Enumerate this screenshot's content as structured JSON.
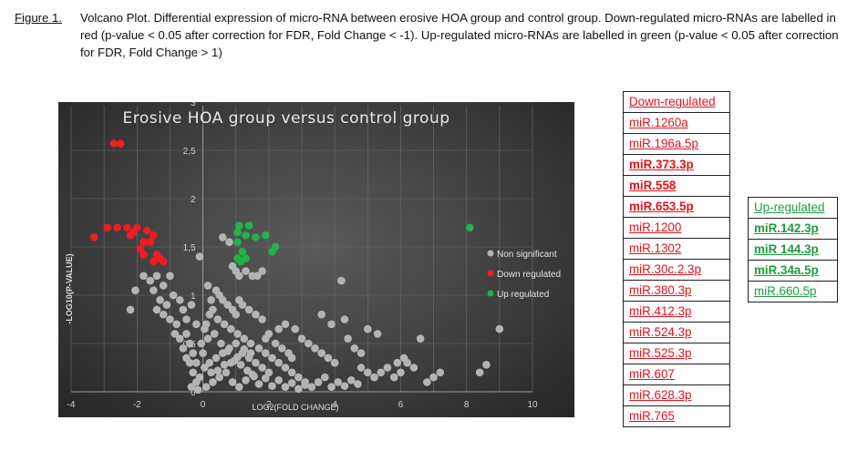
{
  "caption": {
    "figure_label": "Figure 1.",
    "text": "Volcano Plot. Differential expression of micro-RNA between erosive HOA group and control group. Down-regulated micro-RNAs are labelled in red (p-value < 0.05 after correction for FDR, Fold Change < -1). Up-regulated micro-RNAs are labelled in green (p-value < 0.05 after correction for FDR, Fold Change > 1)"
  },
  "down_table": {
    "header": "Down-regulated",
    "items": [
      {
        "label": "miR.1260a",
        "bold": false
      },
      {
        "label": "miR.196a.5p",
        "bold": false
      },
      {
        "label": "miR.373.3p",
        "bold": true
      },
      {
        "label": "miR.558",
        "bold": true
      },
      {
        "label": "miR.653.5p",
        "bold": true
      },
      {
        "label": "miR.1200",
        "bold": false
      },
      {
        "label": "miR.1302",
        "bold": false
      },
      {
        "label": "miR.30c.2.3p",
        "bold": false
      },
      {
        "label": "miR.380.3p",
        "bold": false
      },
      {
        "label": "miR.412.3p",
        "bold": false
      },
      {
        "label": "miR.524.3p",
        "bold": false
      },
      {
        "label": "miR.525.3p",
        "bold": false
      },
      {
        "label": "miR.607",
        "bold": false
      },
      {
        "label": "miR.628.3p",
        "bold": false
      },
      {
        "label": "miR.765",
        "bold": false
      }
    ]
  },
  "up_table": {
    "header": "Up-regulated",
    "items": [
      {
        "label": "miR.142.3p",
        "bold": true
      },
      {
        "label": "miR 144.3p",
        "bold": true
      },
      {
        "label": "miR.34a.5p",
        "bold": true
      },
      {
        "label": "miR.660.5p",
        "bold": false
      }
    ]
  },
  "chart_data": {
    "type": "scatter",
    "title": "Erosive HOA group versus control group",
    "xlabel": "LOG2(FOLD CHANGE)",
    "ylabel": "-LOG10(P-VALUE)",
    "xlim": [
      -4,
      10
    ],
    "ylim": [
      0,
      3
    ],
    "xticks": [
      -4,
      -2,
      0,
      2,
      4,
      6,
      8,
      10
    ],
    "yticks": [
      0.5,
      1,
      1.5,
      2,
      2.5,
      3
    ],
    "grid": true,
    "legend_position": "right",
    "colors": {
      "non_significant": "#b4b4b4",
      "down": "#ee1c24",
      "up": "#22b14c"
    },
    "series": [
      {
        "name": "Non significant",
        "color": "#b4b4b4",
        "points": [
          [
            -2.2,
            0.85
          ],
          [
            -2.05,
            1.05
          ],
          [
            -1.8,
            1.2
          ],
          [
            -1.6,
            1.15
          ],
          [
            -1.4,
            1.2
          ],
          [
            -1.2,
            1.1
          ],
          [
            -1.0,
            1.2
          ],
          [
            -1.5,
            1.05
          ],
          [
            -1.3,
            0.95
          ],
          [
            -1.1,
            0.9
          ],
          [
            -0.9,
            1.0
          ],
          [
            -0.7,
            0.95
          ],
          [
            -1.4,
            0.85
          ],
          [
            -1.2,
            0.8
          ],
          [
            -1.0,
            0.75
          ],
          [
            -0.8,
            0.7
          ],
          [
            -0.6,
            0.85
          ],
          [
            -0.5,
            0.75
          ],
          [
            -0.85,
            0.6
          ],
          [
            -0.7,
            0.55
          ],
          [
            -0.5,
            0.6
          ],
          [
            -0.4,
            0.5
          ],
          [
            -0.6,
            0.45
          ],
          [
            -0.3,
            0.4
          ],
          [
            -0.5,
            0.35
          ],
          [
            -0.4,
            0.3
          ],
          [
            -0.2,
            0.3
          ],
          [
            -0.3,
            0.2
          ],
          [
            -0.1,
            0.15
          ],
          [
            -0.2,
            0.1
          ],
          [
            -0.35,
            0.05
          ],
          [
            -0.15,
            0.02
          ],
          [
            -0.1,
            1.4
          ],
          [
            0.6,
            1.6
          ],
          [
            0.8,
            1.55
          ],
          [
            0.9,
            1.3
          ],
          [
            1.0,
            1.25
          ],
          [
            1.1,
            1.2
          ],
          [
            1.3,
            1.25
          ],
          [
            1.5,
            1.2
          ],
          [
            1.8,
            1.25
          ],
          [
            1.65,
            1.2
          ],
          [
            4.2,
            1.15
          ],
          [
            0.4,
            1.05
          ],
          [
            0.5,
            1.0
          ],
          [
            0.6,
            0.95
          ],
          [
            0.75,
            0.9
          ],
          [
            0.9,
            0.85
          ],
          [
            1.0,
            0.8
          ],
          [
            1.1,
            0.95
          ],
          [
            1.2,
            0.9
          ],
          [
            1.4,
            0.85
          ],
          [
            1.6,
            0.8
          ],
          [
            1.8,
            0.75
          ],
          [
            0.3,
            0.85
          ],
          [
            0.2,
            0.8
          ],
          [
            0.45,
            0.75
          ],
          [
            0.65,
            0.7
          ],
          [
            0.85,
            0.65
          ],
          [
            1.05,
            0.6
          ],
          [
            1.25,
            0.55
          ],
          [
            1.45,
            0.5
          ],
          [
            1.7,
            0.45
          ],
          [
            1.9,
            0.4
          ],
          [
            2.1,
            0.35
          ],
          [
            2.3,
            0.3
          ],
          [
            2.5,
            0.25
          ],
          [
            2.7,
            0.2
          ],
          [
            2.9,
            0.15
          ],
          [
            3.1,
            0.1
          ],
          [
            3.3,
            0.05
          ],
          [
            2.8,
            0.65
          ],
          [
            3.0,
            0.55
          ],
          [
            3.2,
            0.5
          ],
          [
            3.4,
            0.45
          ],
          [
            3.6,
            0.4
          ],
          [
            3.8,
            0.35
          ],
          [
            4.0,
            0.3
          ],
          [
            3.6,
            0.8
          ],
          [
            3.9,
            0.7
          ],
          [
            4.4,
            0.55
          ],
          [
            4.6,
            0.45
          ],
          [
            4.8,
            0.4
          ],
          [
            4.3,
            0.75
          ],
          [
            5.0,
            0.65
          ],
          [
            5.3,
            0.6
          ],
          [
            4.8,
            0.25
          ],
          [
            5.0,
            0.2
          ],
          [
            5.2,
            0.15
          ],
          [
            5.4,
            0.2
          ],
          [
            5.6,
            0.25
          ],
          [
            5.8,
            0.15
          ],
          [
            6.0,
            0.2
          ],
          [
            6.2,
            0.3
          ],
          [
            6.4,
            0.25
          ],
          [
            6.6,
            0.55
          ],
          [
            6.8,
            0.1
          ],
          [
            7.0,
            0.15
          ],
          [
            7.2,
            0.2
          ],
          [
            5.9,
            0.3
          ],
          [
            6.1,
            0.35
          ],
          [
            8.4,
            0.2
          ],
          [
            8.6,
            0.28
          ],
          [
            9.0,
            0.65
          ],
          [
            0.1,
            0.05
          ],
          [
            0.3,
            0.1
          ],
          [
            0.5,
            0.15
          ],
          [
            0.7,
            0.2
          ],
          [
            0.9,
            0.1
          ],
          [
            1.1,
            0.05
          ],
          [
            1.3,
            0.12
          ],
          [
            1.5,
            0.18
          ],
          [
            1.7,
            0.08
          ],
          [
            1.9,
            0.14
          ],
          [
            2.1,
            0.06
          ],
          [
            2.3,
            0.12
          ],
          [
            2.5,
            0.05
          ],
          [
            2.7,
            0.09
          ],
          [
            2.9,
            0.03
          ],
          [
            3.1,
            0.07
          ],
          [
            3.5,
            0.1
          ],
          [
            3.7,
            0.15
          ],
          [
            3.9,
            0.05
          ],
          [
            4.1,
            0.1
          ],
          [
            4.3,
            0.06
          ],
          [
            4.5,
            0.12
          ],
          [
            4.7,
            0.08
          ],
          [
            0.2,
            0.3
          ],
          [
            0.4,
            0.35
          ],
          [
            0.6,
            0.4
          ],
          [
            0.8,
            0.45
          ],
          [
            1.0,
            0.5
          ],
          [
            1.2,
            0.4
          ],
          [
            1.4,
            0.35
          ],
          [
            1.6,
            0.3
          ],
          [
            1.8,
            0.25
          ],
          [
            2.0,
            0.2
          ],
          [
            0.15,
            0.55
          ],
          [
            0.35,
            0.6
          ],
          [
            0.55,
            0.5
          ],
          [
            0.75,
            0.42
          ],
          [
            0.95,
            0.32
          ],
          [
            1.15,
            0.28
          ],
          [
            1.35,
            0.22
          ],
          [
            1.55,
            0.16
          ],
          [
            0.05,
            0.25
          ],
          [
            0.25,
            0.2
          ],
          [
            0.45,
            0.22
          ],
          [
            0.65,
            0.28
          ],
          [
            0.85,
            0.3
          ],
          [
            1.05,
            0.36
          ],
          [
            1.25,
            0.44
          ],
          [
            1.45,
            0.4
          ],
          [
            2.2,
            0.5
          ],
          [
            2.4,
            0.45
          ],
          [
            2.6,
            0.4
          ],
          [
            2.0,
            0.6
          ],
          [
            1.9,
            0.55
          ],
          [
            2.5,
            0.7
          ],
          [
            2.3,
            0.65
          ],
          [
            2.7,
            0.35
          ],
          [
            0.0,
            0.4
          ],
          [
            -0.05,
            0.5
          ],
          [
            0.05,
            0.65
          ],
          [
            0.1,
            0.7
          ],
          [
            0.25,
            0.95
          ],
          [
            0.15,
            1.1
          ],
          [
            -0.2,
            0.7
          ],
          [
            -0.35,
            0.9
          ]
        ]
      },
      {
        "name": "Down regulated",
        "color": "#ee1c24",
        "points": [
          [
            -2.7,
            2.57
          ],
          [
            -2.5,
            2.57
          ],
          [
            -3.3,
            1.6
          ],
          [
            -2.9,
            1.7
          ],
          [
            -2.6,
            1.7
          ],
          [
            -2.3,
            1.7
          ],
          [
            -2.1,
            1.65
          ],
          [
            -2.0,
            1.7
          ],
          [
            -1.7,
            1.67
          ],
          [
            -2.2,
            1.62
          ],
          [
            -1.8,
            1.55
          ],
          [
            -1.5,
            1.62
          ],
          [
            -1.6,
            1.55
          ],
          [
            -1.9,
            1.48
          ],
          [
            -1.8,
            1.42
          ],
          [
            -1.4,
            1.42
          ],
          [
            -1.3,
            1.38
          ],
          [
            -1.5,
            1.35
          ],
          [
            -1.2,
            1.35
          ]
        ]
      },
      {
        "name": "Up regulated",
        "color": "#22b14c",
        "points": [
          [
            1.1,
            1.72
          ],
          [
            1.4,
            1.72
          ],
          [
            1.05,
            1.65
          ],
          [
            1.3,
            1.62
          ],
          [
            1.9,
            1.62
          ],
          [
            1.6,
            1.6
          ],
          [
            1.05,
            1.55
          ],
          [
            2.2,
            1.5
          ],
          [
            2.1,
            1.45
          ],
          [
            1.2,
            1.45
          ],
          [
            1.05,
            1.38
          ],
          [
            1.3,
            1.38
          ],
          [
            1.15,
            1.35
          ],
          [
            8.1,
            1.7
          ]
        ]
      }
    ]
  }
}
